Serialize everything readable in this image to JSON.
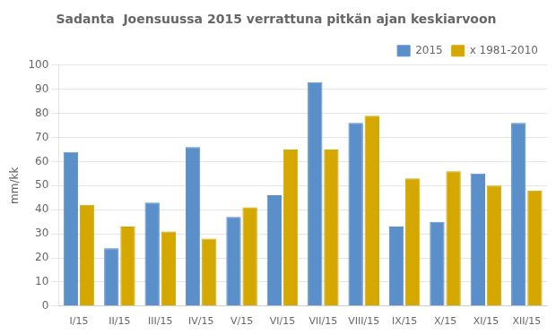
{
  "chart_data": {
    "type": "bar",
    "title": "Sadanta  Joensuussa 2015 verrattuna pitkän ajan keskiarvoon",
    "ylabel": "mm/kk",
    "categories": [
      "I/15",
      "II/15",
      "III/15",
      "IV/15",
      "V/15",
      "VI/15",
      "VII/15",
      "VIII/15",
      "IX/15",
      "X/15",
      "XI/15",
      "XII/15"
    ],
    "series": [
      {
        "name": "2015",
        "color": "#5b8fc9",
        "values": [
          64,
          24,
          43,
          66,
          37,
          46,
          93,
          76,
          33,
          35,
          55,
          76
        ]
      },
      {
        "name": "x 1981-2010",
        "color": "#d4a800",
        "values": [
          42,
          33,
          31,
          28,
          41,
          65,
          65,
          79,
          53,
          56,
          50,
          48
        ]
      }
    ],
    "ylim": [
      0,
      100
    ],
    "yticks": [
      0,
      10,
      20,
      30,
      40,
      50,
      60,
      70,
      80,
      90,
      100
    ],
    "grid": true,
    "legend": "upper right"
  }
}
